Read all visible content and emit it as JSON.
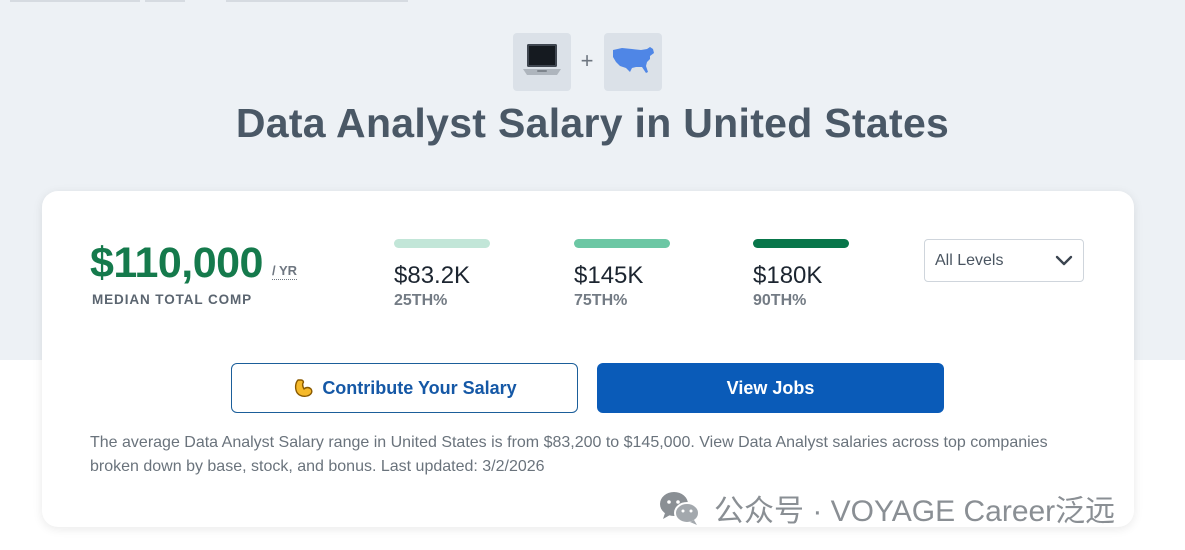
{
  "header": {
    "title": "Data Analyst Salary in United States",
    "plus_sign": "+",
    "icons": [
      "laptop-icon",
      "usa-map-icon"
    ]
  },
  "summary": {
    "median_value": "$110,000",
    "median_unit": "/ YR",
    "median_label": "MEDIAN TOTAL COMP"
  },
  "percentiles": [
    {
      "value": "$83.2K",
      "label": "25TH%",
      "color": "#c2e6d8"
    },
    {
      "value": "$145K",
      "label": "75TH%",
      "color": "#6cc7a4"
    },
    {
      "value": "$180K",
      "label": "90TH%",
      "color": "#08764a"
    }
  ],
  "level_filter": {
    "selected": "All Levels"
  },
  "actions": {
    "contribute_label": "Contribute Your Salary",
    "view_jobs_label": "View Jobs"
  },
  "description": "The average Data Analyst Salary range in United States is from $83,200 to $145,000. View Data Analyst salaries across top companies broken down by base, stock, and bonus. Last updated: 3/2/2026",
  "watermark": {
    "text": "公众号 · VOYAGE Career泛远"
  },
  "colors": {
    "hero_background": "#edf1f5",
    "median_green": "#157a4c",
    "primary_blue": "#0a5bb8"
  }
}
